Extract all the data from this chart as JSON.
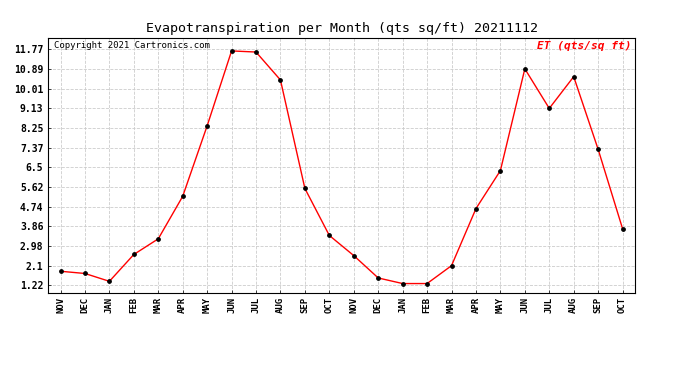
{
  "title": "Evapotranspiration per Month (qts sq/ft) 20211112",
  "copyright": "Copyright 2021 Cartronics.com",
  "legend_label": "ET (qts/sq ft)",
  "line_color": "red",
  "marker_color": "black",
  "background_color": "white",
  "grid_color": "#cccccc",
  "months": [
    "NOV",
    "DEC",
    "JAN",
    "FEB",
    "MAR",
    "APR",
    "MAY",
    "JUN",
    "JUL",
    "AUG",
    "SEP",
    "OCT",
    "NOV",
    "DEC",
    "JAN",
    "FEB",
    "MAR",
    "APR",
    "MAY",
    "JUN",
    "JUL",
    "AUG",
    "SEP",
    "OCT"
  ],
  "values": [
    1.85,
    1.75,
    1.4,
    2.6,
    3.3,
    5.2,
    8.35,
    11.7,
    11.65,
    10.4,
    5.55,
    3.45,
    2.55,
    1.55,
    1.3,
    1.3,
    2.1,
    4.65,
    6.35,
    10.9,
    9.13,
    10.55,
    7.3,
    3.75
  ],
  "yticks": [
    1.22,
    2.1,
    2.98,
    3.86,
    4.74,
    5.62,
    6.5,
    7.37,
    8.25,
    9.13,
    10.01,
    10.89,
    11.77
  ],
  "ylim": [
    0.9,
    12.3
  ],
  "title_fontsize": 9.5,
  "copyright_fontsize": 6.5,
  "legend_fontsize": 8,
  "xtick_fontsize": 6.5,
  "ytick_fontsize": 7
}
